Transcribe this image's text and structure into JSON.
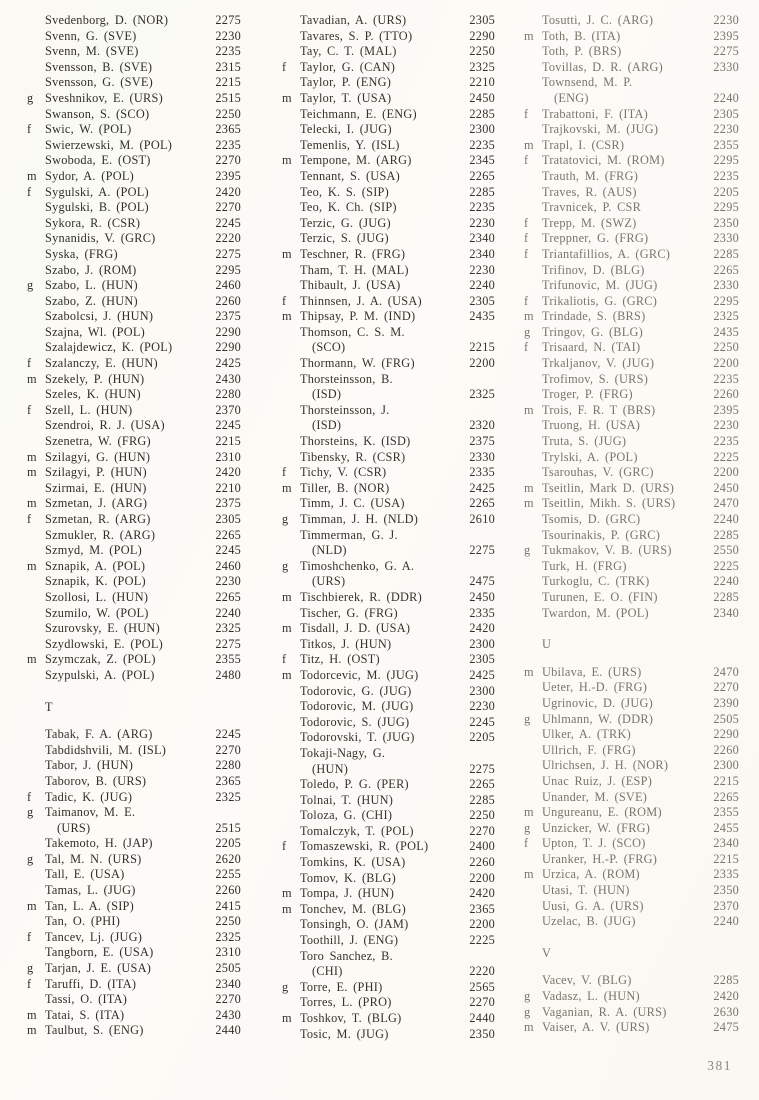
{
  "page": {
    "number": "381"
  },
  "columns": [
    {
      "name": "column-1",
      "entries": [
        {
          "p": "",
          "n": "Svedenborg, D. (NOR)",
          "r": "2275"
        },
        {
          "p": "",
          "n": "Svenn, G. (SVE)",
          "r": "2230"
        },
        {
          "p": "",
          "n": "Svenn, M. (SVE)",
          "r": "2235"
        },
        {
          "p": "",
          "n": "Svensson, B. (SVE)",
          "r": "2315"
        },
        {
          "p": "",
          "n": "Svensson, G. (SVE)",
          "r": "2215"
        },
        {
          "p": "g",
          "n": "Sveshnikov, E. (URS)",
          "r": "2515"
        },
        {
          "p": "",
          "n": "Swanson, S. (SCO)",
          "r": "2250"
        },
        {
          "p": "f",
          "n": "Swic, W. (POL)",
          "r": "2365"
        },
        {
          "p": "",
          "n": "Swierzewski, M. (POL)",
          "r": "2235"
        },
        {
          "p": "",
          "n": "Swoboda, E. (OST)",
          "r": "2270"
        },
        {
          "p": "m",
          "n": "Sydor, A. (POL)",
          "r": "2395"
        },
        {
          "p": "f",
          "n": "Sygulski, A. (POL)",
          "r": "2420"
        },
        {
          "p": "",
          "n": "Sygulski, B. (POL)",
          "r": "2270"
        },
        {
          "p": "",
          "n": "Sykora, R. (CSR)",
          "r": "2245"
        },
        {
          "p": "",
          "n": "Synanidis, V. (GRC)",
          "r": "2220"
        },
        {
          "p": "",
          "n": "Syska, (FRG)",
          "r": "2275"
        },
        {
          "p": "",
          "n": "Szabo, J. (ROM)",
          "r": "2295"
        },
        {
          "p": "g",
          "n": "Szabo, L. (HUN)",
          "r": "2460"
        },
        {
          "p": "",
          "n": "Szabo, Z. (HUN)",
          "r": "2260"
        },
        {
          "p": "",
          "n": "Szabolcsi, J. (HUN)",
          "r": "2375"
        },
        {
          "p": "",
          "n": "Szajna, Wl. (POL)",
          "r": "2290"
        },
        {
          "p": "",
          "n": "Szalajdewicz, K. (POL)",
          "r": "2290"
        },
        {
          "p": "f",
          "n": "Szalanczy, E. (HUN)",
          "r": "2425"
        },
        {
          "p": "m",
          "n": "Szekely, P. (HUN)",
          "r": "2430"
        },
        {
          "p": "",
          "n": "Szeles, K. (HUN)",
          "r": "2280"
        },
        {
          "p": "f",
          "n": "Szell, L. (HUN)",
          "r": "2370"
        },
        {
          "p": "",
          "n": "Szendroi, R. J. (USA)",
          "r": "2245"
        },
        {
          "p": "",
          "n": "Szenetra, W. (FRG)",
          "r": "2215"
        },
        {
          "p": "m",
          "n": "Szilagyi, G. (HUN)",
          "r": "2310"
        },
        {
          "p": "m",
          "n": "Szilagyi, P. (HUN)",
          "r": "2420"
        },
        {
          "p": "",
          "n": "Szirmai, E. (HUN)",
          "r": "2210"
        },
        {
          "p": "m",
          "n": "Szmetan, J. (ARG)",
          "r": "2375"
        },
        {
          "p": "f",
          "n": "Szmetan, R. (ARG)",
          "r": "2305"
        },
        {
          "p": "",
          "n": "Szmukler, R. (ARG)",
          "r": "2265"
        },
        {
          "p": "",
          "n": "Szmyd, M. (POL)",
          "r": "2245"
        },
        {
          "p": "m",
          "n": "Sznapik, A. (POL)",
          "r": "2460"
        },
        {
          "p": "",
          "n": "Sznapik, K. (POL)",
          "r": "2230"
        },
        {
          "p": "",
          "n": "Szollosi, L. (HUN)",
          "r": "2265"
        },
        {
          "p": "",
          "n": "Szumilo, W. (POL)",
          "r": "2240"
        },
        {
          "p": "",
          "n": "Szurovsky, E. (HUN)",
          "r": "2325"
        },
        {
          "p": "",
          "n": "Szydlowski, E. (POL)",
          "r": "2275"
        },
        {
          "p": "m",
          "n": "Szymczak, Z. (POL)",
          "r": "2355"
        },
        {
          "p": "",
          "n": "Szypulski, A. (POL)",
          "r": "2480"
        },
        {
          "h": "T"
        },
        {
          "p": "",
          "n": "Tabak, F. A. (ARG)",
          "r": "2245"
        },
        {
          "p": "",
          "n": "Tabdidshvili, M. (ISL)",
          "r": "2270"
        },
        {
          "p": "",
          "n": "Tabor, J. (HUN)",
          "r": "2280"
        },
        {
          "p": "",
          "n": "Taborov, B. (URS)",
          "r": "2365"
        },
        {
          "p": "f",
          "n": "Tadic, K. (JUG)",
          "r": "2325"
        },
        {
          "p": "g",
          "n": "Taimanov, M. E.",
          "n2": "(URS)",
          "r": "2515"
        },
        {
          "p": "",
          "n": "Takemoto, H. (JAP)",
          "r": "2205"
        },
        {
          "p": "g",
          "n": "Tal, M. N. (URS)",
          "r": "2620"
        },
        {
          "p": "",
          "n": "Tall, E. (USA)",
          "r": "2255"
        },
        {
          "p": "",
          "n": "Tamas, L. (JUG)",
          "r": "2260"
        },
        {
          "p": "m",
          "n": "Tan, L. A. (SIP)",
          "r": "2415"
        },
        {
          "p": "",
          "n": "Tan, O. (PHI)",
          "r": "2250"
        },
        {
          "p": "f",
          "n": "Tancev, Lj. (JUG)",
          "r": "2325"
        },
        {
          "p": "",
          "n": "Tangborn, E. (USA)",
          "r": "2310"
        },
        {
          "p": "g",
          "n": "Tarjan, J. E. (USA)",
          "r": "2505"
        },
        {
          "p": "f",
          "n": "Taruffi, D. (ITA)",
          "r": "2340"
        },
        {
          "p": "",
          "n": "Tassi, O. (ITA)",
          "r": "2270"
        },
        {
          "p": "m",
          "n": "Tatai, S. (ITA)",
          "r": "2430"
        },
        {
          "p": "m",
          "n": "Taulbut, S. (ENG)",
          "r": "2440"
        }
      ]
    },
    {
      "name": "column-2",
      "entries": [
        {
          "p": "",
          "n": "Tavadian, A. (URS)",
          "r": "2305"
        },
        {
          "p": "",
          "n": "Tavares, S. P. (TTO)",
          "r": "2290"
        },
        {
          "p": "",
          "n": "Tay, C. T. (MAL)",
          "r": "2250"
        },
        {
          "p": "f",
          "n": "Taylor, G. (CAN)",
          "r": "2325"
        },
        {
          "p": "",
          "n": "Taylor, P. (ENG)",
          "r": "2210"
        },
        {
          "p": "m",
          "n": "Taylor, T. (USA)",
          "r": "2450"
        },
        {
          "p": "",
          "n": "Teichmann, E. (ENG)",
          "r": "2285"
        },
        {
          "p": "",
          "n": "Telecki, I. (JUG)",
          "r": "2300"
        },
        {
          "p": "",
          "n": "Temenlis, Y. (ISL)",
          "r": "2235"
        },
        {
          "p": "m",
          "n": "Tempone, M. (ARG)",
          "r": "2345"
        },
        {
          "p": "",
          "n": "Tennant, S. (USA)",
          "r": "2265"
        },
        {
          "p": "",
          "n": "Teo, K. S. (SIP)",
          "r": "2285"
        },
        {
          "p": "",
          "n": "Teo, K. Ch. (SIP)",
          "r": "2235"
        },
        {
          "p": "",
          "n": "Terzic, G. (JUG)",
          "r": "2230"
        },
        {
          "p": "",
          "n": "Terzic, S. (JUG)",
          "r": "2340"
        },
        {
          "p": "m",
          "n": "Teschner, R. (FRG)",
          "r": "2340"
        },
        {
          "p": "",
          "n": "Tham, T. H. (MAL)",
          "r": "2230"
        },
        {
          "p": "",
          "n": "Thibault, J. (USA)",
          "r": "2240"
        },
        {
          "p": "f",
          "n": "Thinnsen, J. A. (USA)",
          "r": "2305"
        },
        {
          "p": "m",
          "n": "Thipsay, P. M. (IND)",
          "r": "2435"
        },
        {
          "p": "",
          "n": "Thomson, C. S. M.",
          "n2": "(SCO)",
          "r": "2215"
        },
        {
          "p": "",
          "n": "Thormann, W. (FRG)",
          "r": "2200"
        },
        {
          "p": "",
          "n": "Thorsteinsson, B.",
          "n2": "(ISD)",
          "r": "2325"
        },
        {
          "p": "",
          "n": "Thorsteinsson, J.",
          "n2": "(ISD)",
          "r": "2320"
        },
        {
          "p": "",
          "n": "Thorsteins, K. (ISD)",
          "r": "2375"
        },
        {
          "p": "",
          "n": "Tibensky, R. (CSR)",
          "r": "2330"
        },
        {
          "p": "f",
          "n": "Tichy, V. (CSR)",
          "r": "2335"
        },
        {
          "p": "m",
          "n": "Tiller, B. (NOR)",
          "r": "2425"
        },
        {
          "p": "",
          "n": "Timm, J. C. (USA)",
          "r": "2265"
        },
        {
          "p": "g",
          "n": "Timman, J. H. (NLD)",
          "r": "2610"
        },
        {
          "p": "",
          "n": "Timmerman, G. J.",
          "n2": "(NLD)",
          "r": "2275"
        },
        {
          "p": "g",
          "n": "Timoshchenko, G. A.",
          "n2": "(URS)",
          "r": "2475"
        },
        {
          "p": "m",
          "n": "Tischbierek, R. (DDR)",
          "r": "2450"
        },
        {
          "p": "",
          "n": "Tischer, G. (FRG)",
          "r": "2335"
        },
        {
          "p": "m",
          "n": "Tisdall, J. D. (USA)",
          "r": "2420"
        },
        {
          "p": "",
          "n": "Titkos, J. (HUN)",
          "r": "2300"
        },
        {
          "p": "f",
          "n": "Titz, H. (OST)",
          "r": "2305"
        },
        {
          "p": "m",
          "n": "Todorcevic, M. (JUG)",
          "r": "2425"
        },
        {
          "p": "",
          "n": "Todorovic, G. (JUG)",
          "r": "2300"
        },
        {
          "p": "",
          "n": "Todorovic, M. (JUG)",
          "r": "2230"
        },
        {
          "p": "",
          "n": "Todorovic, S. (JUG)",
          "r": "2245"
        },
        {
          "p": "",
          "n": "Todorovski, T. (JUG)",
          "r": "2205"
        },
        {
          "p": "",
          "n": "Tokaji-Nagy, G.",
          "n2": "(HUN)",
          "r": "2275"
        },
        {
          "p": "",
          "n": "Toledo, P. G. (PER)",
          "r": "2265"
        },
        {
          "p": "",
          "n": "Tolnai, T. (HUN)",
          "r": "2285"
        },
        {
          "p": "",
          "n": "Toloza, G. (CHI)",
          "r": "2250"
        },
        {
          "p": "",
          "n": "Tomalczyk, T. (POL)",
          "r": "2270"
        },
        {
          "p": "f",
          "n": "Tomaszewski, R. (POL)",
          "r": "2400"
        },
        {
          "p": "",
          "n": "Tomkins, K. (USA)",
          "r": "2260"
        },
        {
          "p": "",
          "n": "Tomov, K. (BLG)",
          "r": "2200"
        },
        {
          "p": "m",
          "n": "Tompa, J. (HUN)",
          "r": "2420"
        },
        {
          "p": "m",
          "n": "Tonchev, M. (BLG)",
          "r": "2365"
        },
        {
          "p": "",
          "n": "Tonsingh, O. (JAM)",
          "r": "2200"
        },
        {
          "p": "",
          "n": "Toothill, J. (ENG)",
          "r": "2225"
        },
        {
          "p": "",
          "n": "Toro Sanchez, B.",
          "n2": "(CHI)",
          "r": "2220"
        },
        {
          "p": "g",
          "n": "Torre, E. (PHI)",
          "r": "2565"
        },
        {
          "p": "",
          "n": "Torres, L. (PRO)",
          "r": "2270"
        },
        {
          "p": "m",
          "n": "Toshkov, T. (BLG)",
          "r": "2440"
        },
        {
          "p": "",
          "n": "Tosic, M. (JUG)",
          "r": "2350"
        }
      ]
    },
    {
      "name": "column-3",
      "entries": [
        {
          "p": "",
          "n": "Tosutti, J. C. (ARG)",
          "r": "2230"
        },
        {
          "p": "m",
          "n": "Toth, B. (ITA)",
          "r": "2395"
        },
        {
          "p": "",
          "n": "Toth, P. (BRS)",
          "r": "2275"
        },
        {
          "p": "",
          "n": "Tovillas, D. R. (ARG)",
          "r": "2330"
        },
        {
          "p": "",
          "n": "Townsend, M. P.",
          "n2": "(ENG)",
          "r": "2240"
        },
        {
          "p": "f",
          "n": "Trabattoni, F. (ITA)",
          "r": "2305"
        },
        {
          "p": "",
          "n": "Trajkovski, M. (JUG)",
          "r": "2230"
        },
        {
          "p": "m",
          "n": "Trapl, I. (CSR)",
          "r": "2355"
        },
        {
          "p": "f",
          "n": "Tratatovici, M. (ROM)",
          "r": "2295"
        },
        {
          "p": "",
          "n": "Trauth, M. (FRG)",
          "r": "2235"
        },
        {
          "p": "",
          "n": "Traves, R. (AUS)",
          "r": "2205"
        },
        {
          "p": "",
          "n": "Travnicek, P. CSR",
          "r": "2295"
        },
        {
          "p": "f",
          "n": "Trepp, M. (SWZ)",
          "r": "2350"
        },
        {
          "p": "f",
          "n": "Treppner, G. (FRG)",
          "r": "2330"
        },
        {
          "p": "f",
          "n": "Triantafillios, A. (GRC)",
          "r": "2285"
        },
        {
          "p": "",
          "n": "Trifinov, D. (BLG)",
          "r": "2265"
        },
        {
          "p": "",
          "n": "Trifunovic, M. (JUG)",
          "r": "2330"
        },
        {
          "p": "f",
          "n": "Trikaliotis, G. (GRC)",
          "r": "2295"
        },
        {
          "p": "m",
          "n": "Trindade, S. (BRS)",
          "r": "2325"
        },
        {
          "p": "g",
          "n": "Tringov, G. (BLG)",
          "r": "2435"
        },
        {
          "p": "f",
          "n": "Trisaard, N. (TAI)",
          "r": "2250"
        },
        {
          "p": "",
          "n": "Trkaljanov, V. (JUG)",
          "r": "2200"
        },
        {
          "p": "",
          "n": "Trofimov, S. (URS)",
          "r": "2235"
        },
        {
          "p": "",
          "n": "Troger, P. (FRG)",
          "r": "2260"
        },
        {
          "p": "m",
          "n": "Trois, F. R. T (BRS)",
          "r": "2395"
        },
        {
          "p": "",
          "n": "Truong, H. (USA)",
          "r": "2230"
        },
        {
          "p": "",
          "n": "Truta, S. (JUG)",
          "r": "2235"
        },
        {
          "p": "",
          "n": "Trylski, A. (POL)",
          "r": "2225"
        },
        {
          "p": "",
          "n": "Tsarouhas, V. (GRC)",
          "r": "2200"
        },
        {
          "p": "m",
          "n": "Tseitlin, Mark D. (URS)",
          "r": "2450"
        },
        {
          "p": "m",
          "n": "Tseitlin, Mikh. S. (URS)",
          "r": "2470"
        },
        {
          "p": "",
          "n": "Tsomis, D. (GRC)",
          "r": "2240"
        },
        {
          "p": "",
          "n": "Tsourinakis, P. (GRC)",
          "r": "2285"
        },
        {
          "p": "g",
          "n": "Tukmakov, V. B. (URS)",
          "r": "2550"
        },
        {
          "p": "",
          "n": "Turk, H. (FRG)",
          "r": "2225"
        },
        {
          "p": "",
          "n": "Turkoglu, C. (TRK)",
          "r": "2240"
        },
        {
          "p": "",
          "n": "Turunen, E. O. (FIN)",
          "r": "2285"
        },
        {
          "p": "",
          "n": "Twardon, M. (POL)",
          "r": "2340"
        },
        {
          "h": "U"
        },
        {
          "p": "m",
          "n": "Ubilava, E. (URS)",
          "r": "2470"
        },
        {
          "p": "",
          "n": "Ueter, H.-D. (FRG)",
          "r": "2270"
        },
        {
          "p": "",
          "n": "Ugrinovic, D. (JUG)",
          "r": "2390"
        },
        {
          "p": "g",
          "n": "Uhlmann, W. (DDR)",
          "r": "2505"
        },
        {
          "p": "",
          "n": "Ulker, A. (TRK)",
          "r": "2290"
        },
        {
          "p": "",
          "n": "Ullrich, F. (FRG)",
          "r": "2260"
        },
        {
          "p": "",
          "n": "Ulrichsen, J. H. (NOR)",
          "r": "2300"
        },
        {
          "p": "",
          "n": "Unac Ruiz, J. (ESP)",
          "r": "2215"
        },
        {
          "p": "",
          "n": "Unander, M. (SVE)",
          "r": "2265"
        },
        {
          "p": "m",
          "n": "Ungureanu, E. (ROM)",
          "r": "2355"
        },
        {
          "p": "g",
          "n": "Unzicker, W. (FRG)",
          "r": "2455"
        },
        {
          "p": "f",
          "n": "Upton, T. J. (SCO)",
          "r": "2340"
        },
        {
          "p": "",
          "n": "Uranker, H.-P. (FRG)",
          "r": "2215"
        },
        {
          "p": "m",
          "n": "Urzica, A. (ROM)",
          "r": "2335"
        },
        {
          "p": "",
          "n": "Utasi, T. (HUN)",
          "r": "2350"
        },
        {
          "p": "",
          "n": "Uusi, G. A. (URS)",
          "r": "2370"
        },
        {
          "p": "",
          "n": "Uzelac, B. (JUG)",
          "r": "2240"
        },
        {
          "h": "V"
        },
        {
          "p": "",
          "n": "Vacev, V. (BLG)",
          "r": "2285"
        },
        {
          "p": "g",
          "n": "Vadasz, L. (HUN)",
          "r": "2420"
        },
        {
          "p": "g",
          "n": "Vaganian, R. A. (URS)",
          "r": "2630"
        },
        {
          "p": "m",
          "n": "Vaiser, A. V. (URS)",
          "r": "2475"
        }
      ]
    }
  ]
}
